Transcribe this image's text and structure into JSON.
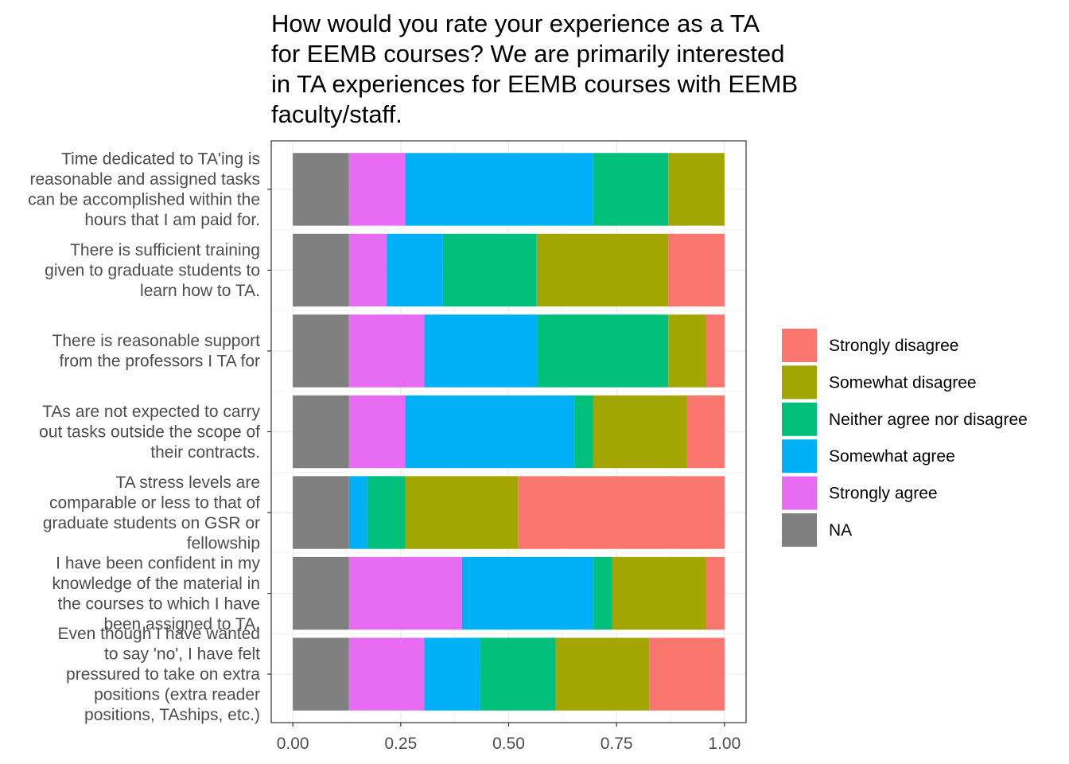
{
  "chart_data": {
    "type": "bar",
    "orientation": "horizontal",
    "stacked": true,
    "title": "How would you rate your experience as a TA for EEMB courses? We are primarily interested in TA experiences for EEMB courses with EEMB faculty/staff.",
    "title_lines": [
      "How would you rate your experience as a TA",
      "for EEMB courses? We are primarily interested",
      "in TA experiences for EEMB courses with EEMB",
      "faculty/staff."
    ],
    "categories": [
      "Time dedicated to TA'ing is reasonable and assigned tasks can be accomplished within the hours that I am paid for.",
      "There is sufficient training given to graduate students to learn how to TA.",
      "There is reasonable support from the professors I TA for",
      "TAs are not expected to carry out tasks outside the scope of their contracts.",
      "TA stress levels are comparable or less to that of graduate students on GSR or fellowship",
      "I have been confident in my knowledge of the material in the courses to which I have been assigned to TA.",
      "Even though I have wanted to say 'no', I have felt pressured to take on extra positions (extra reader positions, TAships, etc.)"
    ],
    "category_lines": [
      [
        "Time dedicated to TA'ing is",
        "reasonable and assigned tasks",
        "can be accomplished within the",
        "hours that I am paid for."
      ],
      [
        "There is sufficient training",
        "given to graduate students to",
        "learn how to TA."
      ],
      [
        "There is reasonable support",
        "from the professors I TA for"
      ],
      [
        "TAs are not expected to carry",
        "out tasks outside the scope of",
        "their contracts."
      ],
      [
        "TA stress levels are",
        "comparable or less to that of",
        "graduate students on GSR or",
        "fellowship"
      ],
      [
        "I have been confident in my",
        "knowledge of the material in",
        "the courses to which I have",
        "been assigned to TA."
      ],
      [
        "Even though I have wanted",
        "to say 'no', I have felt",
        "pressured to take on extra",
        "positions (extra reader",
        "positions, TAships, etc.)"
      ]
    ],
    "series": [
      {
        "name": "NA",
        "color": "#7F7F7F",
        "values": [
          0.13,
          0.13,
          0.13,
          0.13,
          0.13,
          0.13,
          0.13
        ]
      },
      {
        "name": "Strongly agree",
        "color": "#E76BF3",
        "values": [
          0.13,
          0.087,
          0.174,
          0.13,
          0.0,
          0.261,
          0.174
        ]
      },
      {
        "name": "Somewhat agree",
        "color": "#00B0F6",
        "values": [
          0.435,
          0.13,
          0.261,
          0.391,
          0.043,
          0.304,
          0.13
        ]
      },
      {
        "name": "Neither agree nor disagree",
        "color": "#00BF7D",
        "values": [
          0.174,
          0.217,
          0.304,
          0.043,
          0.087,
          0.043,
          0.174
        ]
      },
      {
        "name": "Somewhat disagree",
        "color": "#A3A500",
        "values": [
          0.13,
          0.304,
          0.087,
          0.217,
          0.261,
          0.217,
          0.217
        ]
      },
      {
        "name": "Strongly disagree",
        "color": "#F8766D",
        "values": [
          0.0,
          0.13,
          0.043,
          0.087,
          0.478,
          0.043,
          0.174
        ]
      }
    ],
    "legend_order": [
      "Strongly disagree",
      "Somewhat disagree",
      "Neither agree nor disagree",
      "Somewhat agree",
      "Strongly agree",
      "NA"
    ],
    "legend_position": "right",
    "xlabel": "",
    "ylabel": "",
    "xlim": [
      -0.05,
      1.05
    ],
    "xticks": [
      0,
      0.25,
      0.5,
      0.75,
      1
    ],
    "xtick_labels": [
      "0.00",
      "0.25",
      "0.50",
      "0.75",
      "1.00"
    ],
    "grid": true,
    "theme": "bw"
  }
}
